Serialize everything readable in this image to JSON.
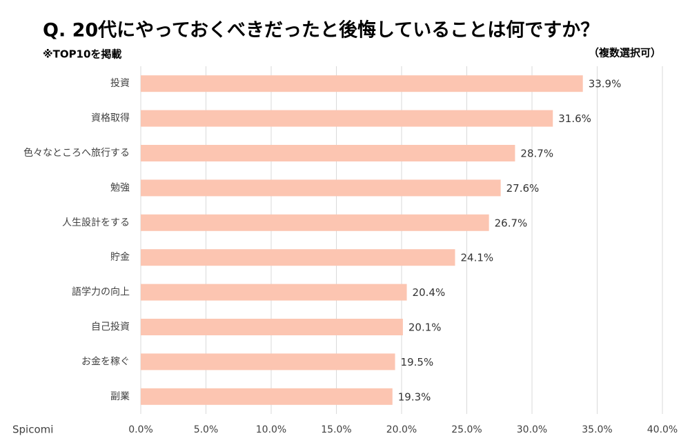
{
  "chart_data": {
    "type": "barh",
    "title": "Q. 20代にやっておくべきだったと後悔していることは何ですか？",
    "subtitle": "※TOP10を掲載",
    "note": "（複数選択可）",
    "source": "Spicomi",
    "categories": [
      "投資",
      "資格取得",
      "色々なところへ旅行する",
      "勉強",
      "人生設計をする",
      "貯金",
      "語学力の向上",
      "自己投資",
      "お金を稼ぐ",
      "副業"
    ],
    "values": [
      33.9,
      31.6,
      28.7,
      27.6,
      26.7,
      24.1,
      20.4,
      20.1,
      19.5,
      19.3
    ],
    "value_labels": [
      "33.9%",
      "31.6%",
      "28.7%",
      "27.6%",
      "26.7%",
      "24.1%",
      "20.4%",
      "20.1%",
      "19.5%",
      "19.3%"
    ],
    "color": "#fcc5b1",
    "xlim": [
      0,
      40
    ],
    "xticks": [
      {
        "value": 0,
        "label": "0.0%"
      },
      {
        "value": 5,
        "label": "5.0%"
      },
      {
        "value": 10,
        "label": "10.0%"
      },
      {
        "value": 15,
        "label": "15.0%"
      },
      {
        "value": 20,
        "label": "20.0%"
      },
      {
        "value": 25,
        "label": "25.0%"
      },
      {
        "value": 30,
        "label": "30.0%"
      },
      {
        "value": 35,
        "label": "35.0%"
      },
      {
        "value": 40,
        "label": "40.0%"
      }
    ],
    "grid": true
  }
}
